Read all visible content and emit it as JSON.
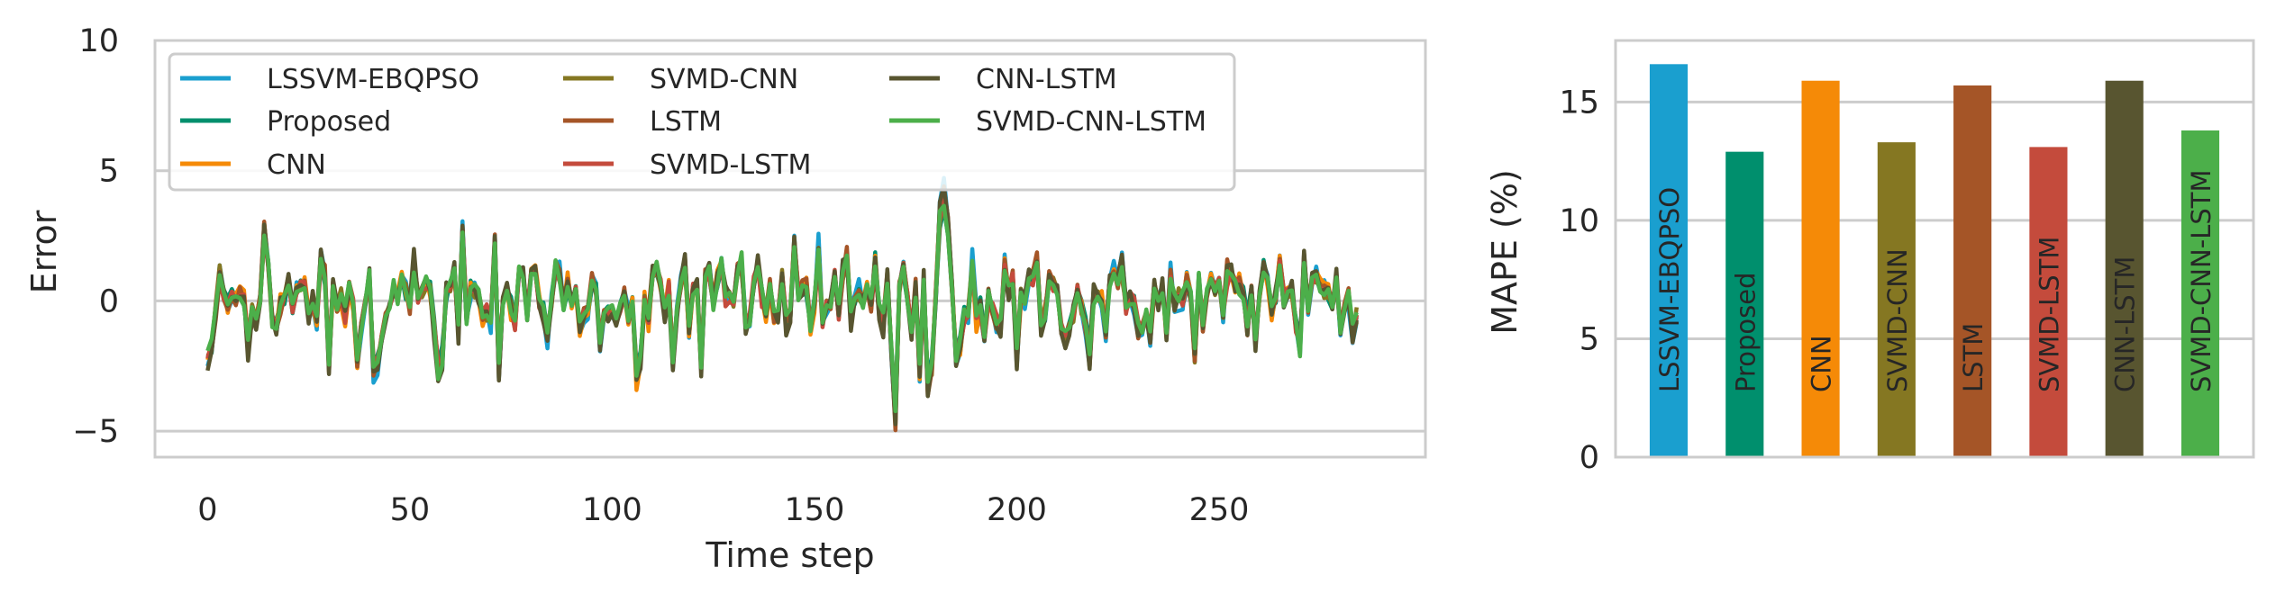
{
  "chart_data": [
    {
      "type": "line",
      "title": "",
      "xlabel": "Time step",
      "ylabel": "Error",
      "xlim": [
        -13,
        301
      ],
      "ylim": [
        -6,
        10
      ],
      "x_ticks": [
        0,
        50,
        100,
        150,
        200,
        250
      ],
      "y_ticks": [
        -5,
        0,
        5,
        10
      ],
      "y_tick_labels": [
        "−5",
        "0",
        "5",
        "10"
      ],
      "grid": "horizontal",
      "legend": {
        "placement": "top-left",
        "columns": 3
      },
      "n_points": 285,
      "series": [
        {
          "name": "LSSVM-EBQPSO",
          "color": "#1a9fcf",
          "amplitude": 1.05
        },
        {
          "name": "Proposed",
          "color": "#008f6d",
          "amplitude": 0.85
        },
        {
          "name": "CNN",
          "color": "#f58a07",
          "amplitude": 1.0
        },
        {
          "name": "SVMD-CNN",
          "color": "#857722",
          "amplitude": 0.9
        },
        {
          "name": "LSTM",
          "color": "#a55527",
          "amplitude": 1.02
        },
        {
          "name": "SVMD-LSTM",
          "color": "#c44b3c",
          "amplitude": 0.9
        },
        {
          "name": "CNN-LSTM",
          "color": "#585530",
          "amplitude": 1.05
        },
        {
          "name": "SVMD-CNN-LSTM",
          "color": "#4caf4a",
          "amplitude": 0.92
        }
      ]
    },
    {
      "type": "bar",
      "title": "",
      "xlabel": "",
      "ylabel": "MAPE (%)",
      "ylim": [
        0,
        17.6
      ],
      "y_ticks": [
        0,
        5,
        10,
        15
      ],
      "grid": "horizontal",
      "categories": [
        "LSSVM-EBQPSO",
        "Proposed",
        "CNN",
        "SVMD-CNN",
        "LSTM",
        "SVMD-LSTM",
        "CNN-LSTM",
        "SVMD-CNN-LSTM"
      ],
      "values": [
        16.6,
        12.9,
        15.9,
        13.3,
        15.7,
        13.1,
        15.9,
        13.8
      ],
      "colors": [
        "#1a9fcf",
        "#008f6d",
        "#f58a07",
        "#857722",
        "#a55527",
        "#c44b3c",
        "#585530",
        "#4caf4a"
      ],
      "bar_labels": "inside-vertical"
    }
  ]
}
